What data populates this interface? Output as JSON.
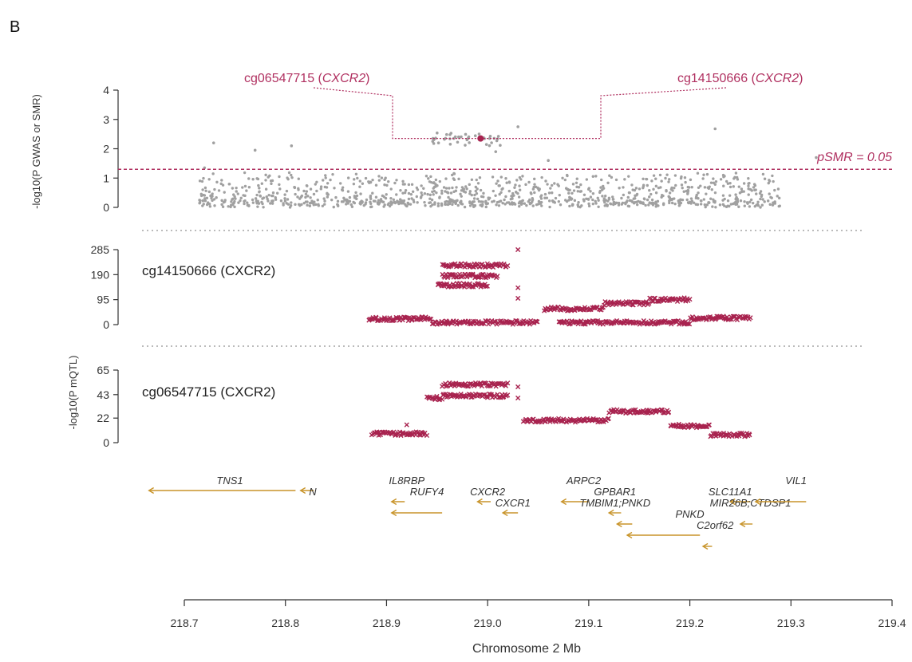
{
  "panel_label": "B",
  "colors": {
    "accent": "#a8234f",
    "grey": "#a0a0a0",
    "gene": "#c8942a",
    "axis": "#333333"
  },
  "chart_data": [
    {
      "type": "scatter",
      "name": "smr-gwas",
      "ylabel": "-log10(P GWAS or SMR)",
      "yticks": [
        0,
        1,
        2,
        3,
        4
      ],
      "ylim": [
        0,
        4
      ],
      "threshold_label": "pSMR = 0.05",
      "threshold_value": 1.3,
      "highlight_labels": [
        {
          "probe": "cg06547715",
          "gene": "CXCR2"
        },
        {
          "probe": "cg14150666",
          "gene": "CXCR2"
        }
      ],
      "highlight_points": [
        {
          "x": 218.993,
          "y": 2.35,
          "probe": "cg06547715"
        },
        {
          "x": 218.993,
          "y": 2.35,
          "probe": "cg14150666"
        }
      ],
      "outliers": [
        {
          "x": 218.729,
          "y": 2.2
        },
        {
          "x": 218.77,
          "y": 1.95
        },
        {
          "x": 218.806,
          "y": 2.1
        },
        {
          "x": 219.03,
          "y": 2.75
        },
        {
          "x": 219.225,
          "y": 2.68
        },
        {
          "x": 219.325,
          "y": 1.7
        },
        {
          "x": 218.72,
          "y": 1.35
        },
        {
          "x": 219.008,
          "y": 1.9
        },
        {
          "x": 219.06,
          "y": 1.6
        }
      ],
      "background_cluster": [
        {
          "x0": 218.715,
          "x1": 219.0,
          "ybase": 0.2,
          "yamp": 1.0
        },
        {
          "x0": 219.0,
          "x1": 219.29,
          "ybase": 0.2,
          "yamp": 1.0
        }
      ],
      "peak_cluster": {
        "x0": 218.945,
        "x1": 219.015,
        "ylow": 2.1,
        "yhigh": 2.55
      }
    },
    {
      "type": "scatter",
      "name": "eqtl-cg14150666",
      "probe_label": "cg14150666 (CXCR2)",
      "yticks": [
        0,
        95,
        190,
        285
      ],
      "ylim": [
        0,
        285
      ],
      "segments": [
        {
          "x0": 218.882,
          "x1": 218.945,
          "y": 22
        },
        {
          "x0": 218.945,
          "x1": 219.05,
          "y": 8
        },
        {
          "x0": 218.95,
          "x1": 219.0,
          "y": 150
        },
        {
          "x0": 218.955,
          "x1": 219.01,
          "y": 185
        },
        {
          "x0": 218.955,
          "x1": 219.02,
          "y": 225
        },
        {
          "x0": 219.055,
          "x1": 219.115,
          "y": 60
        },
        {
          "x0": 219.115,
          "x1": 219.16,
          "y": 80
        },
        {
          "x0": 219.16,
          "x1": 219.2,
          "y": 95
        },
        {
          "x0": 219.2,
          "x1": 219.26,
          "y": 25
        },
        {
          "x0": 219.07,
          "x1": 219.2,
          "y": 8
        }
      ],
      "scatter_extra": [
        {
          "x": 219.03,
          "y": 285
        },
        {
          "x": 219.03,
          "y": 140
        },
        {
          "x": 219.03,
          "y": 100
        }
      ]
    },
    {
      "type": "scatter",
      "name": "eqtl-cg06547715",
      "probe_label": "cg06547715 (CXCR2)",
      "ylabel": "-log10(P mQTL)",
      "yticks": [
        0,
        22,
        43,
        65
      ],
      "ylim": [
        0,
        65
      ],
      "segments": [
        {
          "x0": 218.885,
          "x1": 218.94,
          "y": 8
        },
        {
          "x0": 218.94,
          "x1": 218.955,
          "y": 40
        },
        {
          "x0": 218.955,
          "x1": 219.02,
          "y": 42
        },
        {
          "x0": 218.955,
          "x1": 219.02,
          "y": 52
        },
        {
          "x0": 219.035,
          "x1": 219.12,
          "y": 20
        },
        {
          "x0": 219.12,
          "x1": 219.18,
          "y": 28
        },
        {
          "x0": 219.18,
          "x1": 219.22,
          "y": 15
        },
        {
          "x0": 219.22,
          "x1": 219.26,
          "y": 7
        }
      ],
      "scatter_extra": [
        {
          "x": 219.03,
          "y": 50
        },
        {
          "x": 218.92,
          "y": 16
        },
        {
          "x": 219.03,
          "y": 40
        }
      ]
    }
  ],
  "genes": [
    {
      "name": "TNS1",
      "x0": 218.665,
      "x1": 218.81,
      "row": 0,
      "dir": -1,
      "lx": 218.745
    },
    {
      "name": "N",
      "x0": 218.815,
      "x1": 218.828,
      "row": 0,
      "dir": -1,
      "lx": 218.827,
      "lrow": 1
    },
    {
      "name": "IL8RBP",
      "x0": 218.905,
      "x1": 218.918,
      "row": 1,
      "dir": -1,
      "lx": 218.92,
      "lrow": 0
    },
    {
      "name": "RUFY4",
      "x0": 218.905,
      "x1": 218.955,
      "row": 2,
      "dir": -1,
      "lx": 218.94,
      "lrow": 1
    },
    {
      "name": "CXCR2",
      "x0": 218.99,
      "x1": 219.003,
      "row": 1,
      "dir": -1,
      "lx": 219.0,
      "lrow": 1
    },
    {
      "name": "CXCR1",
      "x0": 219.015,
      "x1": 219.03,
      "row": 2,
      "dir": -1,
      "lx": 219.025,
      "lrow": 2
    },
    {
      "name": "ARPC2",
      "x0": 219.073,
      "x1": 219.1,
      "row": 1,
      "dir": -1,
      "lx": 219.095,
      "lrow": 0
    },
    {
      "name": "GPBAR1",
      "x0": 219.12,
      "x1": 219.132,
      "row": 2,
      "dir": -1,
      "lx": 219.126,
      "lrow": 1
    },
    {
      "name": "TMBIM1;PNKD",
      "x0": 219.128,
      "x1": 219.143,
      "row": 3,
      "dir": -1,
      "lx": 219.126,
      "lrow": 2
    },
    {
      "name": "PNKD",
      "x0": 219.138,
      "x1": 219.21,
      "row": 4,
      "dir": -1,
      "lx": 219.2,
      "lrow": 3
    },
    {
      "name": "C2orf62",
      "x0": 219.213,
      "x1": 219.222,
      "row": 5,
      "dir": -1,
      "lx": 219.225,
      "lrow": 4
    },
    {
      "name": "SLC11A1",
      "x0": 219.24,
      "x1": 219.26,
      "row": 1,
      "dir": -1,
      "lx": 219.24,
      "lrow": 1
    },
    {
      "name": "MIR26B;CTDSP1",
      "x0": 219.25,
      "x1": 219.262,
      "row": 3,
      "dir": -1,
      "lx": 219.26,
      "lrow": 2
    },
    {
      "name": "VIL1",
      "x0": 219.265,
      "x1": 219.315,
      "row": 1,
      "dir": -1,
      "lx": 219.305,
      "lrow": 0
    }
  ],
  "xaxis": {
    "label": "Chromosome 2 Mb",
    "ticks": [
      "218.7",
      "218.8",
      "218.9",
      "219.0",
      "219.1",
      "219.2",
      "219.3",
      "219.4"
    ],
    "tick_values": [
      218.7,
      218.8,
      218.9,
      219.0,
      219.1,
      219.2,
      219.3,
      219.4
    ],
    "range": [
      218.7,
      219.4
    ]
  }
}
